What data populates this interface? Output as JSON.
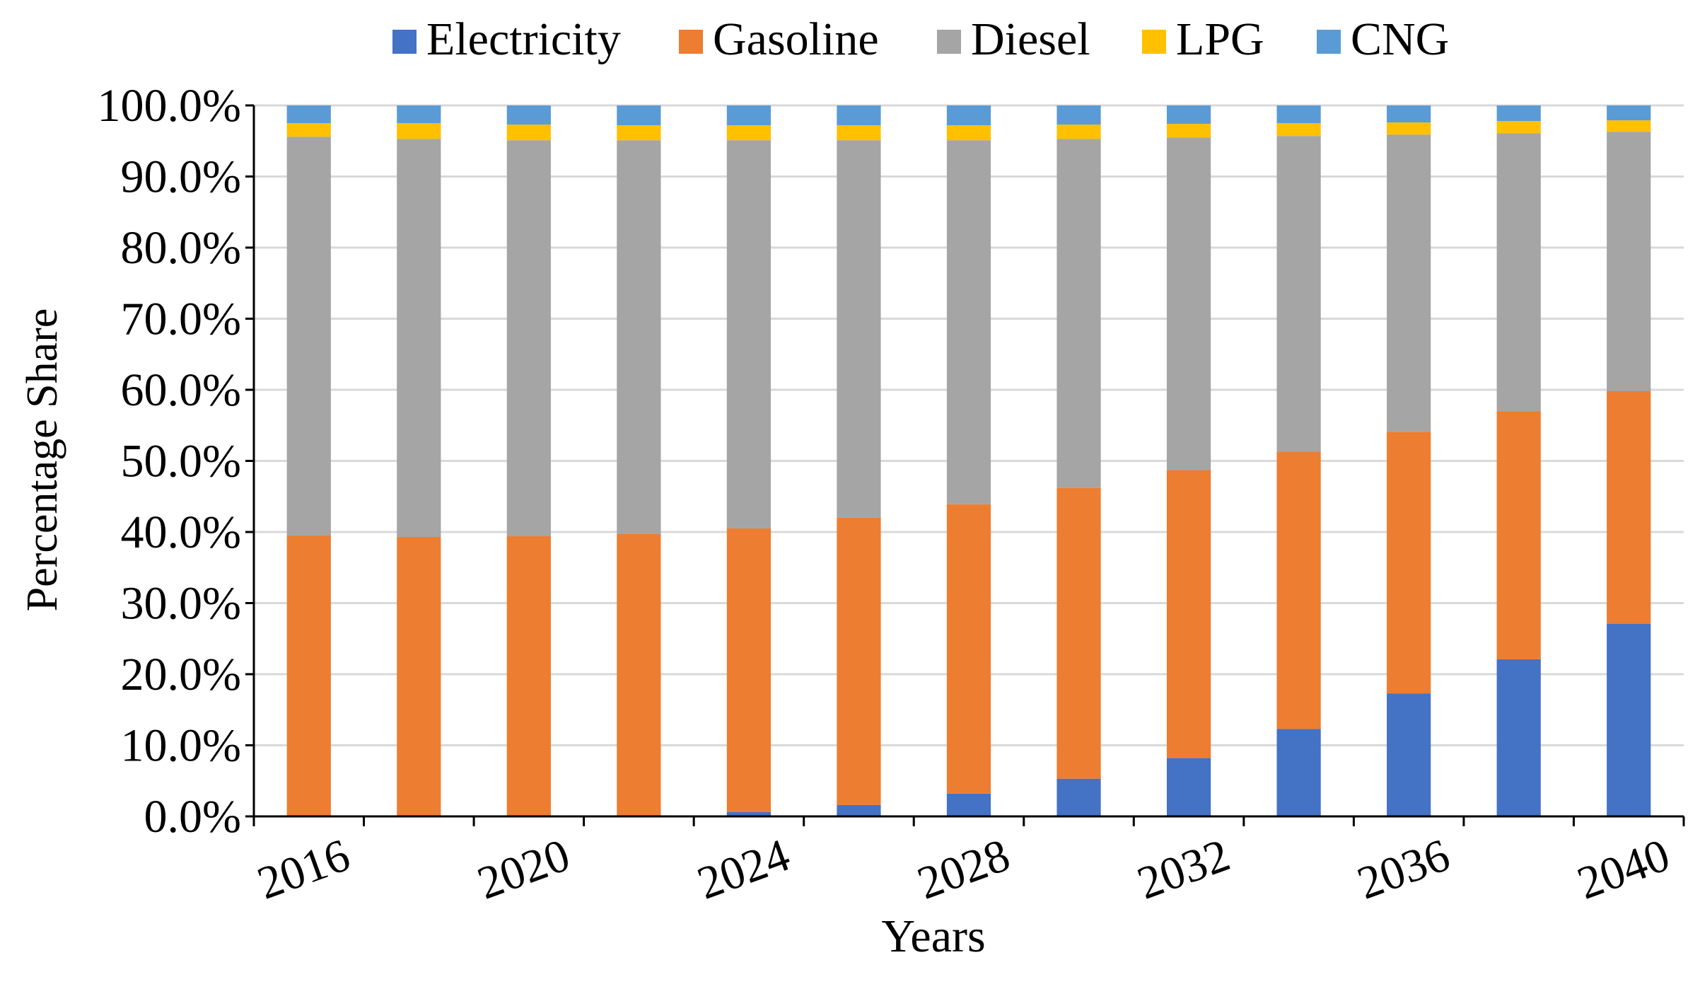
{
  "chart_data": {
    "type": "stacked-bar",
    "categories": [
      "2016",
      null,
      "2020",
      null,
      "2024",
      null,
      "2028",
      null,
      "2032",
      null,
      "2036",
      null,
      "2040"
    ],
    "x_label": "Years",
    "y_label": "Percentage Share",
    "series": [
      {
        "name": "Electricity",
        "color": "#4472c4",
        "values": [
          0,
          0,
          0,
          0,
          0.6,
          1.6,
          3.2,
          5.3,
          8.2,
          12.3,
          17.3,
          22.1,
          27.1
        ]
      },
      {
        "name": "Gasoline",
        "color": "#ed7d31",
        "values": [
          39.5,
          39.3,
          39.4,
          39.7,
          39.9,
          40.4,
          40.7,
          40.9,
          40.5,
          39.0,
          36.8,
          34.9,
          32.7
        ]
      },
      {
        "name": "Diesel",
        "color": "#a5a5a5",
        "values": [
          56.1,
          56.0,
          55.7,
          55.4,
          54.6,
          53.1,
          51.2,
          49.1,
          46.8,
          44.4,
          41.8,
          39.1,
          36.5
        ]
      },
      {
        "name": "LPG",
        "color": "#ffc000",
        "values": [
          1.9,
          2.2,
          2.2,
          2.1,
          2.1,
          2.1,
          2.1,
          2.0,
          1.9,
          1.8,
          1.7,
          1.7,
          1.6
        ]
      },
      {
        "name": "CNG",
        "color": "#5b9bd5",
        "values": [
          2.5,
          2.5,
          2.7,
          2.8,
          2.8,
          2.8,
          2.8,
          2.7,
          2.6,
          2.5,
          2.4,
          2.2,
          2.1
        ]
      }
    ],
    "ylim": [
      0,
      100
    ],
    "yticks": [
      {
        "value": 0,
        "label": "0.0%"
      },
      {
        "value": 10,
        "label": "10.0%"
      },
      {
        "value": 20,
        "label": "20.0%"
      },
      {
        "value": 30,
        "label": "30.0%"
      },
      {
        "value": 40,
        "label": "40.0%"
      },
      {
        "value": 50,
        "label": "50.0%"
      },
      {
        "value": 60,
        "label": "60.0%"
      },
      {
        "value": 70,
        "label": "70.0%"
      },
      {
        "value": 80,
        "label": "80.0%"
      },
      {
        "value": 90,
        "label": "90.0%"
      },
      {
        "value": 100,
        "label": "100.0%"
      }
    ],
    "grid": true,
    "legend": "top"
  }
}
